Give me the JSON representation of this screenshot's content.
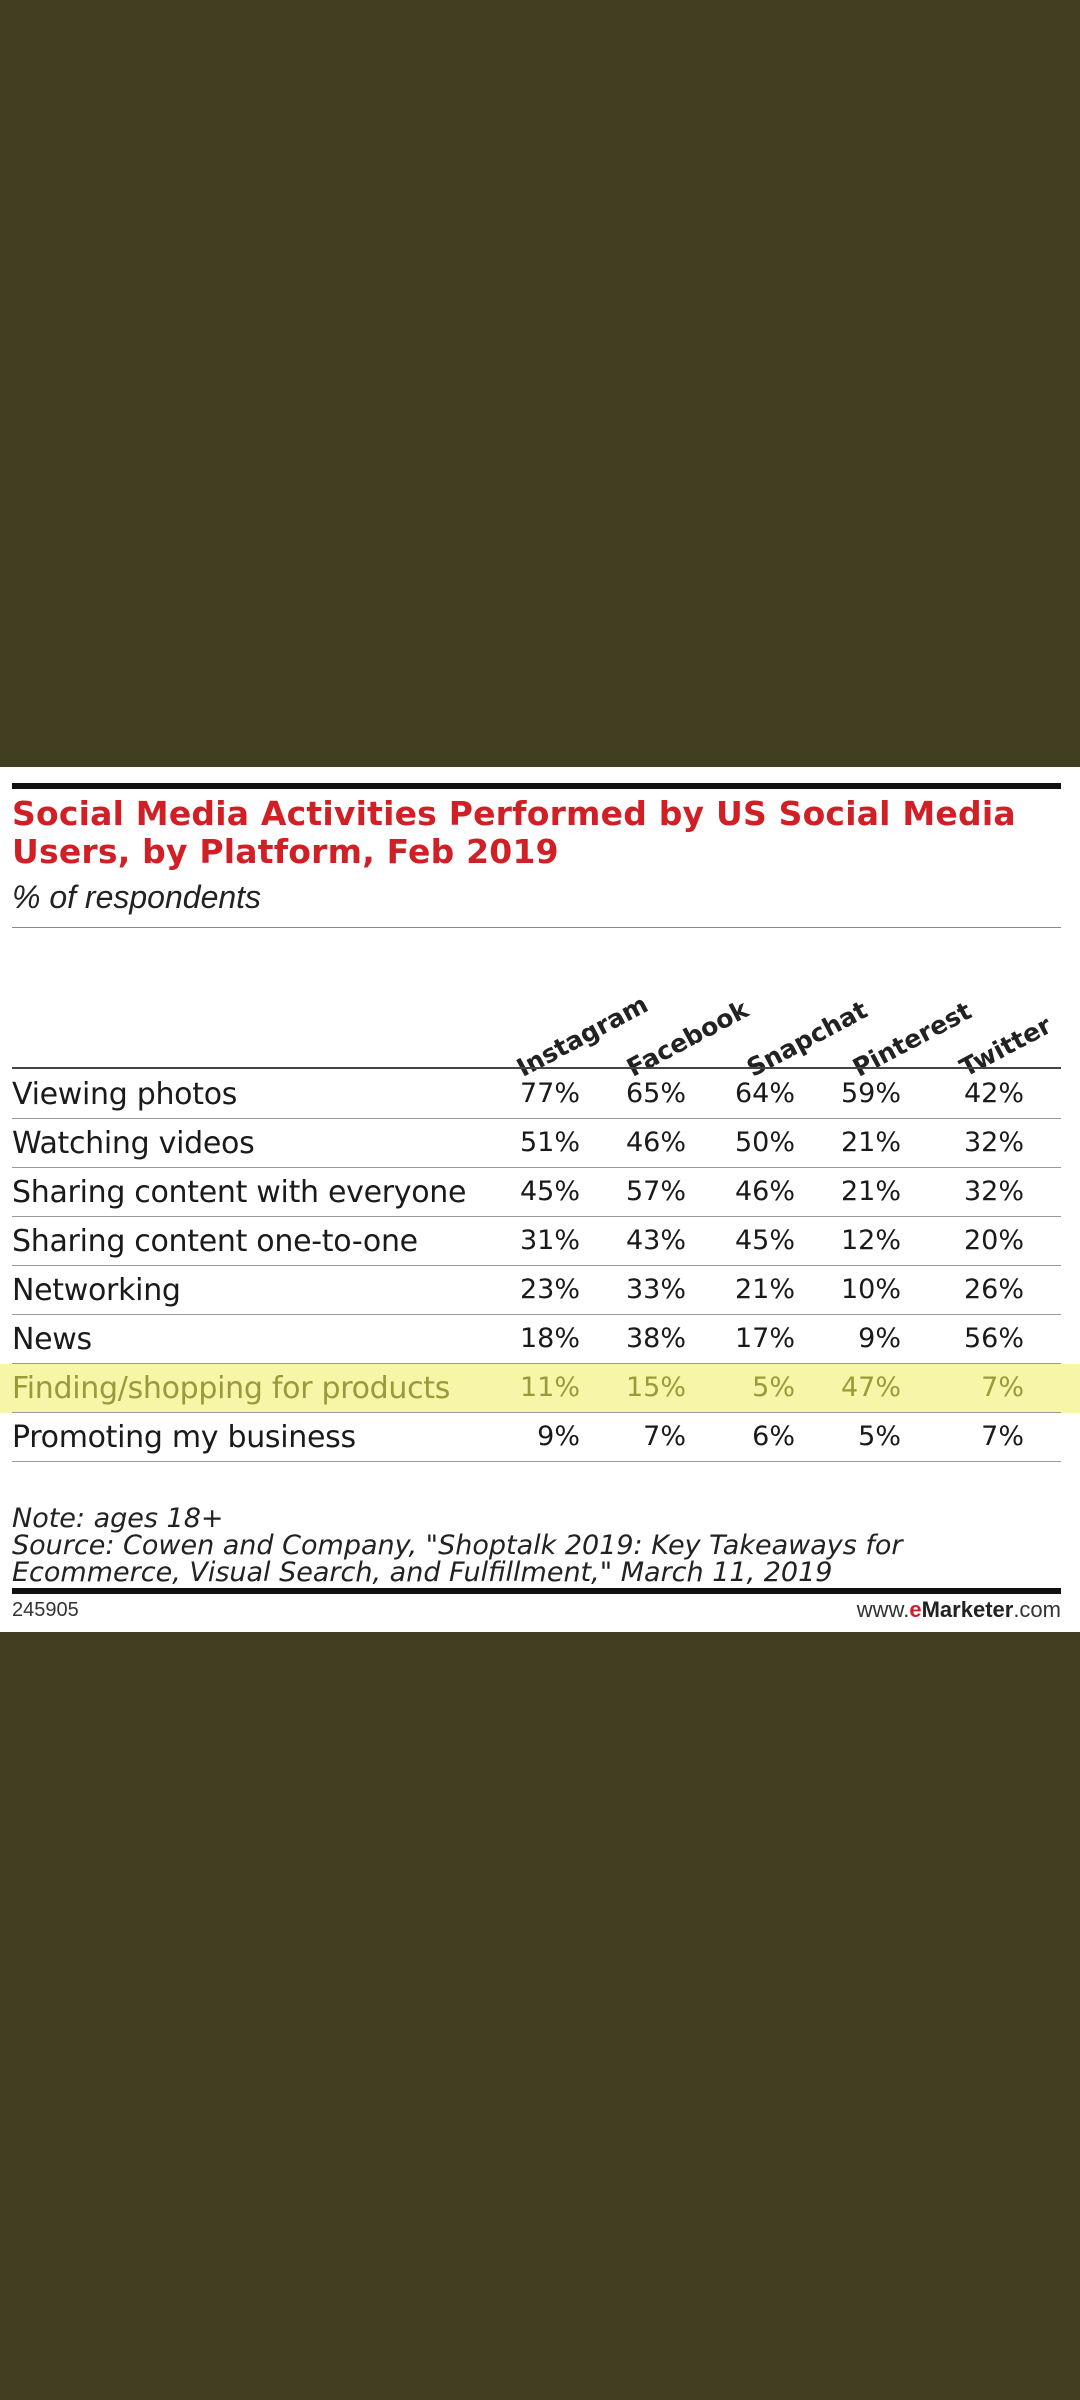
{
  "chart_data": {
    "type": "table",
    "title": "Social Media Activities Performed by US Social Media Users, by Platform, Feb 2019",
    "subtitle": "% of respondents",
    "columns": [
      "Instagram",
      "Facebook",
      "Snapchat",
      "Pinterest",
      "Twitter"
    ],
    "rows": [
      {
        "label": "Viewing photos",
        "values": [
          "77%",
          "65%",
          "64%",
          "59%",
          "42%"
        ],
        "highlight": false
      },
      {
        "label": "Watching videos",
        "values": [
          "51%",
          "46%",
          "50%",
          "21%",
          "32%"
        ],
        "highlight": false
      },
      {
        "label": "Sharing content with everyone",
        "values": [
          "45%",
          "57%",
          "46%",
          "21%",
          "32%"
        ],
        "highlight": false
      },
      {
        "label": "Sharing content one-to-one",
        "values": [
          "31%",
          "43%",
          "45%",
          "12%",
          "20%"
        ],
        "highlight": false
      },
      {
        "label": "Networking",
        "values": [
          "23%",
          "33%",
          "21%",
          "10%",
          "26%"
        ],
        "highlight": false
      },
      {
        "label": "News",
        "values": [
          "18%",
          "38%",
          "17%",
          "9%",
          "56%"
        ],
        "highlight": false
      },
      {
        "label": "Finding/shopping for products",
        "values": [
          "11%",
          "15%",
          "5%",
          "47%",
          "7%"
        ],
        "highlight": true
      },
      {
        "label": "Promoting my business",
        "values": [
          "9%",
          "7%",
          "6%",
          "5%",
          "7%"
        ],
        "highlight": false
      }
    ],
    "note": "Note: ages 18+",
    "source": "Source: Cowen and Company, \"Shoptalk 2019: Key Takeaways for Ecommerce, Visual Search, and Fulfillment,\" March 11, 2019",
    "chart_id": "245905",
    "brand": {
      "prefix": "www.",
      "e": "e",
      "marketer": "Marketer",
      "suffix": ".com"
    }
  },
  "colors": {
    "page_background": "#413e22",
    "card_background": "#ffffff",
    "title": "#d11f26",
    "highlight_row": "#f6f5a8",
    "highlight_text": "#9a9a3a"
  }
}
